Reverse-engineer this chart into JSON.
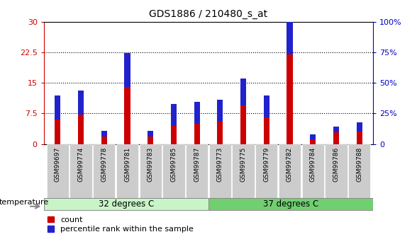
{
  "title": "GDS1886 / 210480_s_at",
  "samples": [
    "GSM99697",
    "GSM99774",
    "GSM99778",
    "GSM99781",
    "GSM99783",
    "GSM99785",
    "GSM99787",
    "GSM99773",
    "GSM99775",
    "GSM99779",
    "GSM99782",
    "GSM99784",
    "GSM99786",
    "GSM99788"
  ],
  "count": [
    6.0,
    7.2,
    1.8,
    14.0,
    1.8,
    4.5,
    5.0,
    5.5,
    9.5,
    6.5,
    22.0,
    1.2,
    2.8,
    3.0
  ],
  "percentile": [
    20.0,
    20.0,
    5.0,
    28.0,
    5.0,
    18.0,
    18.0,
    18.0,
    22.0,
    18.0,
    30.0,
    4.0,
    5.0,
    8.0
  ],
  "group1_label": "32 degrees C",
  "group2_label": "37 degrees C",
  "group1_count": 7,
  "group2_count": 7,
  "group1_color": "#c8f5c8",
  "group2_color": "#70d070",
  "bar_color_count": "#cc0000",
  "bar_color_percentile": "#2222cc",
  "left_axis_color": "#cc0000",
  "right_axis_color": "#0000cc",
  "ylim_left": [
    0,
    30
  ],
  "ylim_right": [
    0,
    100
  ],
  "yticks_left": [
    0,
    7.5,
    15,
    22.5,
    30
  ],
  "yticks_right": [
    0,
    25,
    50,
    75,
    100
  ],
  "ytick_labels_left": [
    "0",
    "7.5",
    "15",
    "22.5",
    "30"
  ],
  "ytick_labels_right": [
    "0",
    "25%",
    "50%",
    "75%",
    "100%"
  ],
  "temperature_label": "temperature",
  "legend_count": "count",
  "legend_percentile": "percentile rank within the sample",
  "bg_color": "#ffffff",
  "bar_width": 0.25,
  "tick_bg_color": "#cccccc"
}
